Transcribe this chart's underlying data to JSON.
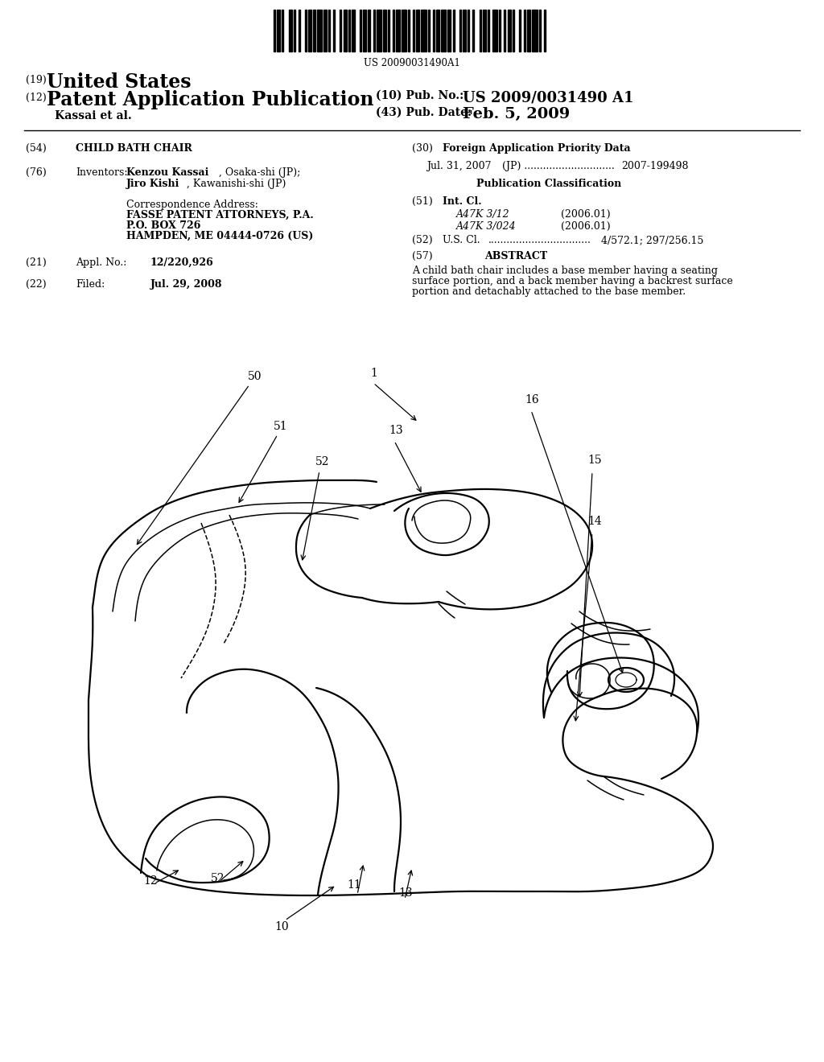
{
  "bg_color": "#ffffff",
  "barcode_text": "US 20090031490A1",
  "title19_prefix": "(19)",
  "title19_text": "United States",
  "title12_prefix": "(12)",
  "title12_text": "Patent Application Publication",
  "pub_no_label": "(10) Pub. No.:",
  "pub_no_value": "US 2009/0031490 A1",
  "pub_date_label": "(43) Pub. Date:",
  "pub_date_value": "Feb. 5, 2009",
  "inventor_line": "Kassai et al.",
  "field54_label": "(54)",
  "field54_value": "CHILD BATH CHAIR",
  "field76_label": "(76)",
  "field76_title": "Inventors:",
  "inv1_bold": "Kenzou Kassai",
  "inv1_normal": ", Osaka-shi (JP);",
  "inv2_bold": "Jiro Kishi",
  "inv2_normal": ", Kawanishi-shi (JP)",
  "corr_address_title": "Correspondence Address:",
  "corr_line1": "FASSE PATENT ATTORNEYS, P.A.",
  "corr_line2": "P.O. BOX 726",
  "corr_line3": "HAMPDEN, ME 04444-0726 (US)",
  "field21_label": "(21)",
  "field21_title": "Appl. No.:",
  "field21_value": "12/220,926",
  "field22_label": "(22)",
  "field22_title": "Filed:",
  "field22_value": "Jul. 29, 2008",
  "field30_label": "(30)",
  "field30_title": "Foreign Application Priority Data",
  "field30_entry1": "Jul. 31, 2007",
  "field30_entry2": "   (JP) .............................",
  "field30_entry3": "2007-199498",
  "pub_class_title": "Publication Classification",
  "field51_label": "(51)",
  "field51_title": "Int. Cl.",
  "field51_class1": "A47K 3/12",
  "field51_year1": "(2006.01)",
  "field51_class2": "A47K 3/024",
  "field51_year2": "(2006.01)",
  "field52_label": "(52)",
  "field52_title": "U.S. Cl.",
  "field52_dots": ".................................",
  "field52_value": "4/572.1; 297/256.15",
  "field57_label": "(57)",
  "field57_title": "ABSTRACT",
  "abs_line1": "A child bath chair includes a base member having a seating",
  "abs_line2": "surface portion, and a back member having a backrest surface",
  "abs_line3": "portion and detachably attached to the base member.",
  "lw_main": 1.6,
  "lw_thin": 1.1
}
